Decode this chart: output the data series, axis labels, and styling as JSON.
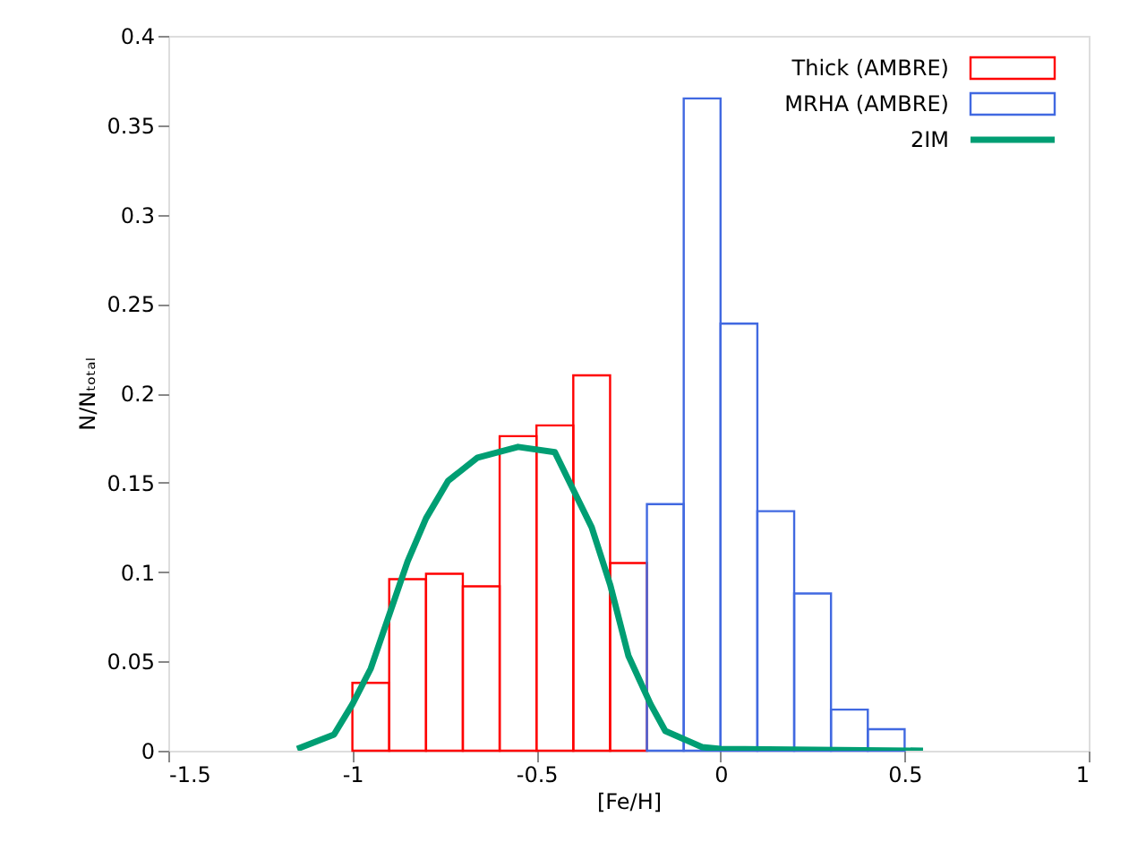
{
  "chart_data": {
    "type": "histogram",
    "xlabel": "[Fe/H]",
    "ylabel": "N/Nₜₒₜₐₗ",
    "bins": [
      -1.0,
      -0.9,
      -0.8,
      -0.7,
      -0.6,
      -0.5,
      -0.4,
      -0.3,
      -0.2,
      -0.1,
      0.0,
      0.1,
      0.2,
      0.3,
      0.4,
      0.5
    ],
    "series": [
      {
        "name": "Thick (AMBRE)",
        "color": "#ff0000",
        "values": [
          0.038,
          0.096,
          0.099,
          0.092,
          0.176,
          0.182,
          0.21,
          0.105,
          null,
          null,
          null,
          null,
          null,
          null,
          null
        ]
      },
      {
        "name": "MRHA (AMBRE)",
        "color": "#4169e1",
        "values": [
          null,
          null,
          null,
          null,
          null,
          null,
          null,
          null,
          0.138,
          0.365,
          0.239,
          0.134,
          0.088,
          0.023,
          0.012
        ]
      },
      {
        "name": "2IM",
        "type": "line",
        "color": "#009e73",
        "x": [
          -1.15,
          -1.05,
          -1.0,
          -0.95,
          -0.9,
          -0.85,
          -0.8,
          -0.74,
          -0.66,
          -0.55,
          -0.45,
          -0.4,
          -0.35,
          -0.3,
          -0.25,
          -0.19,
          -0.15,
          -0.05,
          0.0,
          0.55
        ],
        "values": [
          0.001,
          0.009,
          0.026,
          0.046,
          0.076,
          0.106,
          0.13,
          0.151,
          0.164,
          0.17,
          0.167,
          0.146,
          0.125,
          0.093,
          0.053,
          0.026,
          0.011,
          0.002,
          0.001,
          0.0
        ]
      }
    ],
    "xlim": [
      -1.5,
      1
    ],
    "xticks": [
      -1.5,
      -1,
      -0.5,
      0,
      0.5,
      1
    ],
    "ylim": [
      0,
      0.4
    ],
    "yticks": [
      0,
      0.05,
      0.1,
      0.15,
      0.2,
      0.25,
      0.3,
      0.35,
      0.4
    ],
    "grid": false,
    "legend": "top right"
  }
}
